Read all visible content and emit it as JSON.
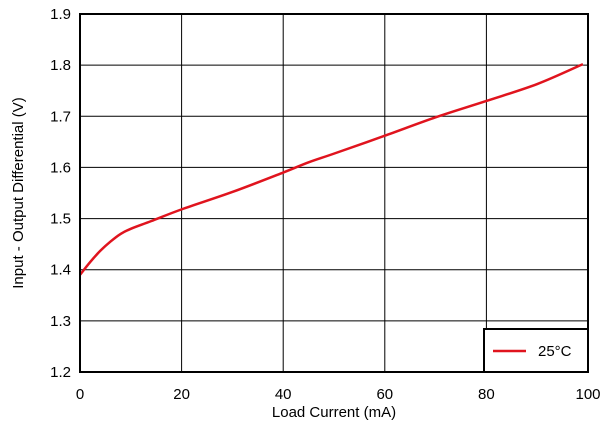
{
  "chart_data": {
    "type": "line",
    "title": "",
    "xlabel": "Load Current (mA)",
    "ylabel": "Input - Output Differential (V)",
    "xlim": [
      0,
      100
    ],
    "ylim": [
      1.2,
      1.9
    ],
    "x_ticks": [
      "0",
      "20",
      "40",
      "60",
      "80",
      "100"
    ],
    "y_ticks": [
      "1.2",
      "1.3",
      "1.4",
      "1.5",
      "1.6",
      "1.7",
      "1.8",
      "1.9"
    ],
    "grid": true,
    "legend_position": "bottom-right",
    "series": [
      {
        "name": "25°C",
        "color": "#e0141e",
        "x": [
          0,
          2,
          4,
          6,
          8,
          10,
          14,
          20,
          30,
          40,
          45,
          50,
          60,
          70,
          80,
          90,
          99
        ],
        "y": [
          1.39,
          1.415,
          1.437,
          1.455,
          1.47,
          1.48,
          1.495,
          1.518,
          1.552,
          1.59,
          1.61,
          1.627,
          1.662,
          1.698,
          1.73,
          1.763,
          1.802
        ]
      }
    ]
  }
}
